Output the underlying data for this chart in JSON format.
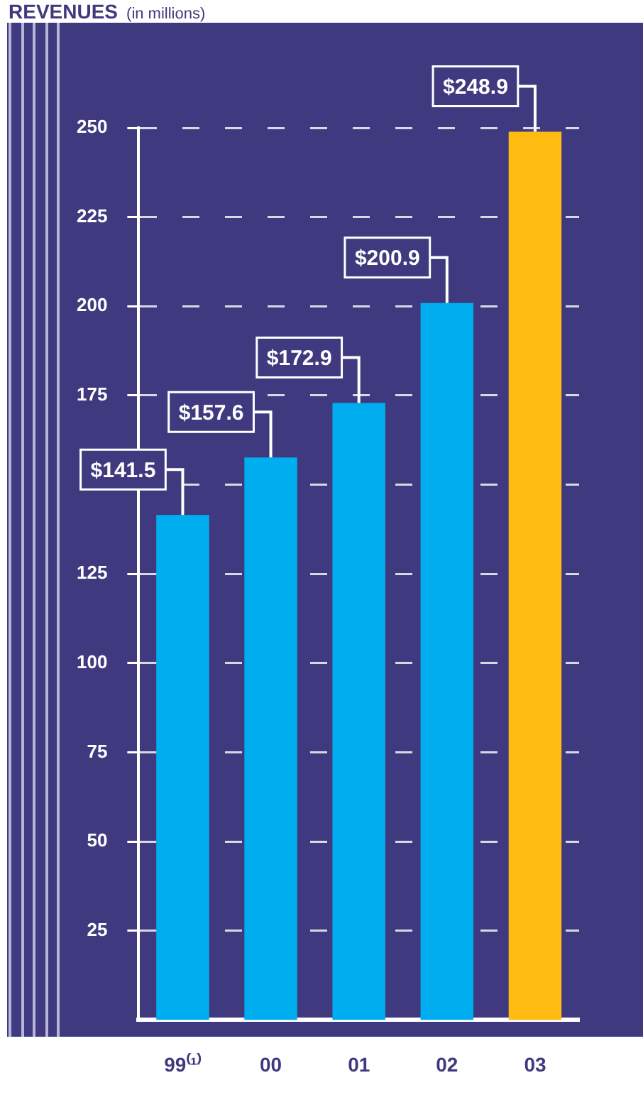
{
  "chart_data": {
    "type": "bar",
    "title": "REVENUES",
    "subtitle": "(in millions)",
    "categories": [
      "99⁽¹⁾",
      "00",
      "01",
      "02",
      "03"
    ],
    "values": [
      141.5,
      157.6,
      172.9,
      200.9,
      248.9
    ],
    "colors": [
      "#00aeef",
      "#00aeef",
      "#00aeef",
      "#00aeef",
      "#ffbb11"
    ],
    "value_labels": [
      "$141.5",
      "$157.6",
      "$172.9",
      "$200.9",
      "$248.9"
    ],
    "ylim": [
      0,
      250
    ],
    "yticks": [
      25,
      50,
      75,
      100,
      125,
      {
        "value": 150,
        "label": null
      },
      175,
      200,
      225,
      250
    ],
    "grid": "y",
    "legend": false
  }
}
